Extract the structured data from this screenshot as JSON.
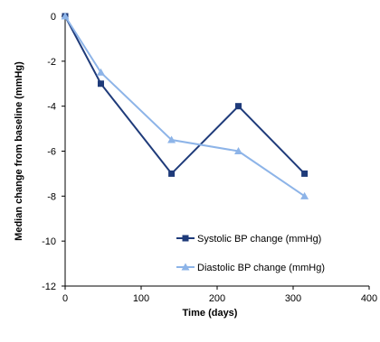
{
  "chart_data": {
    "type": "line",
    "title": "",
    "xlabel": "Time (days)",
    "ylabel": "Median change from baseline (mmHg)",
    "xlim": [
      0,
      400
    ],
    "ylim": [
      -12,
      0
    ],
    "xticks": [
      0,
      100,
      200,
      300,
      400
    ],
    "yticks": [
      0,
      -2,
      -4,
      -6,
      -8,
      -10,
      -12
    ],
    "grid": false,
    "legend_position": "lower-right",
    "series": [
      {
        "name": "Systolic BP change (mmHg)",
        "color": "#1f3b7a",
        "marker": "square",
        "x": [
          0,
          47,
          140,
          228,
          315
        ],
        "y": [
          0,
          -3,
          -7,
          -4,
          -7
        ]
      },
      {
        "name": "Diastolic BP change (mmHg)",
        "color": "#8db4e8",
        "marker": "triangle",
        "x": [
          0,
          47,
          140,
          228,
          315
        ],
        "y": [
          0,
          -2.5,
          -5.5,
          -6,
          -8
        ]
      }
    ]
  }
}
